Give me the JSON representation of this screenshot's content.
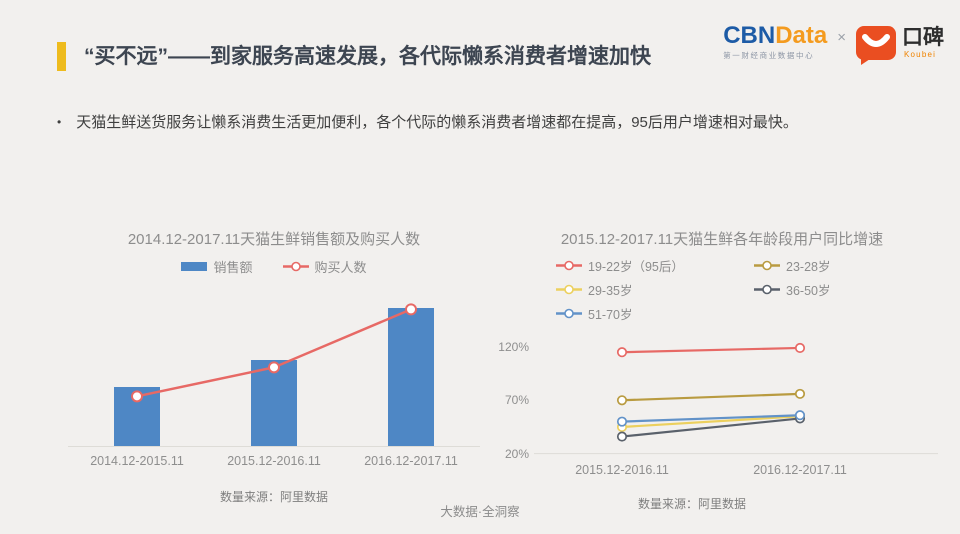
{
  "header": {
    "title": "“买不远”——到家服务高速发展，各代际懒系消费者增速加快",
    "accent_color": "#eebb1d",
    "logo": {
      "cbn": "CBN",
      "data": "Data",
      "subtitle": "第一财经商业数据中心",
      "separator": "×",
      "koubei_name": "口碑",
      "koubei_sub": "Koubei",
      "koubei_color": "#ea4e21"
    }
  },
  "bullet": {
    "marker": "•",
    "text": "天猫生鲜送货服务让懒系消费生活更加便利，各个代际的懒系消费者增速都在提高，95后用户增速相对最快。"
  },
  "chart_data": [
    {
      "type": "bar",
      "title": "2014.12-2017.11天猫生鲜销售额及购买人数",
      "categories": [
        "2014.12-2015.11",
        "2015.12-2016.11",
        "2016.12-2017.11"
      ],
      "series": [
        {
          "name": "销售额",
          "type": "bar",
          "values": [
            43,
            62,
            100
          ],
          "color": "#4e87c5"
        },
        {
          "name": "购买人数",
          "type": "line",
          "values": [
            36,
            57,
            99
          ],
          "color": "#e76965"
        }
      ],
      "value_scale": "relative-index-max-100 (no y-axis labels shown)",
      "ylim": [
        0,
        110
      ],
      "grid": false,
      "legend_position": "top",
      "source": "数量来源：阿里数据"
    },
    {
      "type": "line",
      "title": "2015.12-2017.11天猫生鲜各年龄段用户同比增速",
      "categories": [
        "2015.12-2016.11",
        "2016.12-2017.11"
      ],
      "series": [
        {
          "name": "19-22岁（95后）",
          "values": [
            115,
            119
          ],
          "color": "#e76965"
        },
        {
          "name": "23-28岁",
          "values": [
            70,
            76
          ],
          "color": "#b99b40"
        },
        {
          "name": "29-35岁",
          "values": [
            45,
            55
          ],
          "color": "#ecd05e"
        },
        {
          "name": "36-50岁",
          "values": [
            36,
            53
          ],
          "color": "#5a616b"
        },
        {
          "name": "51-70岁",
          "values": [
            50,
            56
          ],
          "color": "#6292c8"
        }
      ],
      "yticks": [
        "120%",
        "70%",
        "20%"
      ],
      "ylim": [
        15,
        133
      ],
      "ylabel": "",
      "xlabel": "",
      "grid": "baseline-only",
      "legend_position": "top",
      "source": "数量来源：阿里数据"
    }
  ],
  "footer": "大数据·全洞察"
}
